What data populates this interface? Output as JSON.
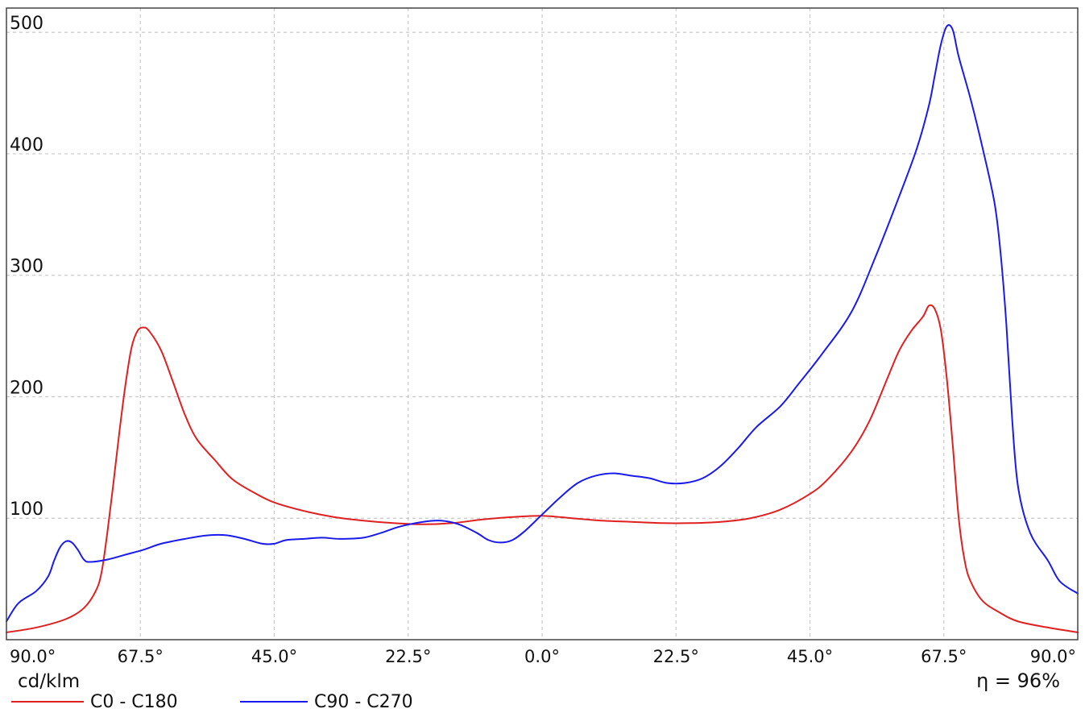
{
  "chart_data": {
    "type": "line",
    "title": "",
    "xlabel": "",
    "ylabel": "cd/klm",
    "annotation": "η = 96%",
    "xlim": [
      -90,
      90
    ],
    "ylim": [
      0,
      520
    ],
    "grid": true,
    "legend_position": "bottom-left",
    "x_tick_values": [
      -90,
      -67.5,
      -45,
      -22.5,
      0,
      22.5,
      45,
      67.5,
      90
    ],
    "x_tick_labels": [
      "90.0°",
      "67.5°",
      "45.0°",
      "22.5°",
      "0.0°",
      "22.5°",
      "45.0°",
      "67.5°",
      "90.0°"
    ],
    "y_tick_values": [
      100,
      200,
      300,
      400,
      500
    ],
    "y_tick_labels": [
      "100",
      "200",
      "300",
      "400",
      "500"
    ],
    "series": [
      {
        "name": "C0 - C180",
        "color": "#e02020",
        "points": [
          [
            -90,
            6
          ],
          [
            -85,
            10
          ],
          [
            -80,
            17
          ],
          [
            -77,
            26
          ],
          [
            -75,
            40
          ],
          [
            -74,
            56
          ],
          [
            -73,
            90
          ],
          [
            -72,
            130
          ],
          [
            -71,
            172
          ],
          [
            -70,
            210
          ],
          [
            -69,
            240
          ],
          [
            -68,
            254
          ],
          [
            -67,
            257
          ],
          [
            -66,
            254
          ],
          [
            -64,
            238
          ],
          [
            -62,
            212
          ],
          [
            -60,
            185
          ],
          [
            -58,
            165
          ],
          [
            -55,
            148
          ],
          [
            -52,
            132
          ],
          [
            -48,
            120
          ],
          [
            -45,
            113
          ],
          [
            -40,
            106
          ],
          [
            -35,
            101
          ],
          [
            -30,
            98
          ],
          [
            -25,
            96
          ],
          [
            -20,
            95
          ],
          [
            -15,
            96
          ],
          [
            -10,
            99
          ],
          [
            -5,
            101
          ],
          [
            0,
            102
          ],
          [
            5,
            100
          ],
          [
            10,
            98
          ],
          [
            15,
            97
          ],
          [
            20,
            96
          ],
          [
            25,
            96
          ],
          [
            30,
            97
          ],
          [
            35,
            100
          ],
          [
            40,
            107
          ],
          [
            45,
            120
          ],
          [
            48,
            132
          ],
          [
            52,
            155
          ],
          [
            55,
            180
          ],
          [
            58,
            215
          ],
          [
            60,
            238
          ],
          [
            62,
            254
          ],
          [
            64,
            266
          ],
          [
            65,
            275
          ],
          [
            66,
            272
          ],
          [
            67,
            255
          ],
          [
            68,
            215
          ],
          [
            69,
            160
          ],
          [
            70,
            100
          ],
          [
            71,
            65
          ],
          [
            72,
            48
          ],
          [
            74,
            32
          ],
          [
            77,
            22
          ],
          [
            80,
            15
          ],
          [
            85,
            10
          ],
          [
            90,
            6
          ]
        ]
      },
      {
        "name": "C90 - C270",
        "color": "#1a1aee",
        "points": [
          [
            -90,
            15
          ],
          [
            -88,
            30
          ],
          [
            -85,
            40
          ],
          [
            -83,
            52
          ],
          [
            -82,
            65
          ],
          [
            -81,
            76
          ],
          [
            -80,
            81
          ],
          [
            -79,
            80
          ],
          [
            -78,
            74
          ],
          [
            -77,
            66
          ],
          [
            -76,
            64
          ],
          [
            -73,
            66
          ],
          [
            -70,
            70
          ],
          [
            -67,
            74
          ],
          [
            -64,
            79
          ],
          [
            -60,
            83
          ],
          [
            -56,
            86
          ],
          [
            -53,
            86
          ],
          [
            -50,
            83
          ],
          [
            -47,
            79
          ],
          [
            -45,
            79
          ],
          [
            -43,
            82
          ],
          [
            -40,
            83
          ],
          [
            -37,
            84
          ],
          [
            -34,
            83
          ],
          [
            -30,
            84
          ],
          [
            -27,
            88
          ],
          [
            -24,
            93
          ],
          [
            -20,
            97
          ],
          [
            -17,
            98
          ],
          [
            -14,
            95
          ],
          [
            -11,
            88
          ],
          [
            -9,
            82
          ],
          [
            -7,
            80
          ],
          [
            -5,
            82
          ],
          [
            -3,
            89
          ],
          [
            0,
            103
          ],
          [
            3,
            117
          ],
          [
            6,
            129
          ],
          [
            9,
            135
          ],
          [
            12,
            137
          ],
          [
            15,
            135
          ],
          [
            18,
            133
          ],
          [
            21,
            129
          ],
          [
            24,
            129
          ],
          [
            27,
            133
          ],
          [
            30,
            143
          ],
          [
            33,
            158
          ],
          [
            36,
            175
          ],
          [
            40,
            192
          ],
          [
            43,
            210
          ],
          [
            47,
            235
          ],
          [
            52,
            270
          ],
          [
            56,
            315
          ],
          [
            60,
            365
          ],
          [
            63,
            405
          ],
          [
            65,
            440
          ],
          [
            66,
            465
          ],
          [
            67,
            490
          ],
          [
            68,
            505
          ],
          [
            69,
            502
          ],
          [
            70,
            480
          ],
          [
            72,
            445
          ],
          [
            74,
            405
          ],
          [
            76,
            360
          ],
          [
            77,
            320
          ],
          [
            78,
            260
          ],
          [
            79,
            180
          ],
          [
            80,
            125
          ],
          [
            82,
            88
          ],
          [
            85,
            65
          ],
          [
            87,
            48
          ],
          [
            90,
            38
          ]
        ]
      }
    ]
  }
}
